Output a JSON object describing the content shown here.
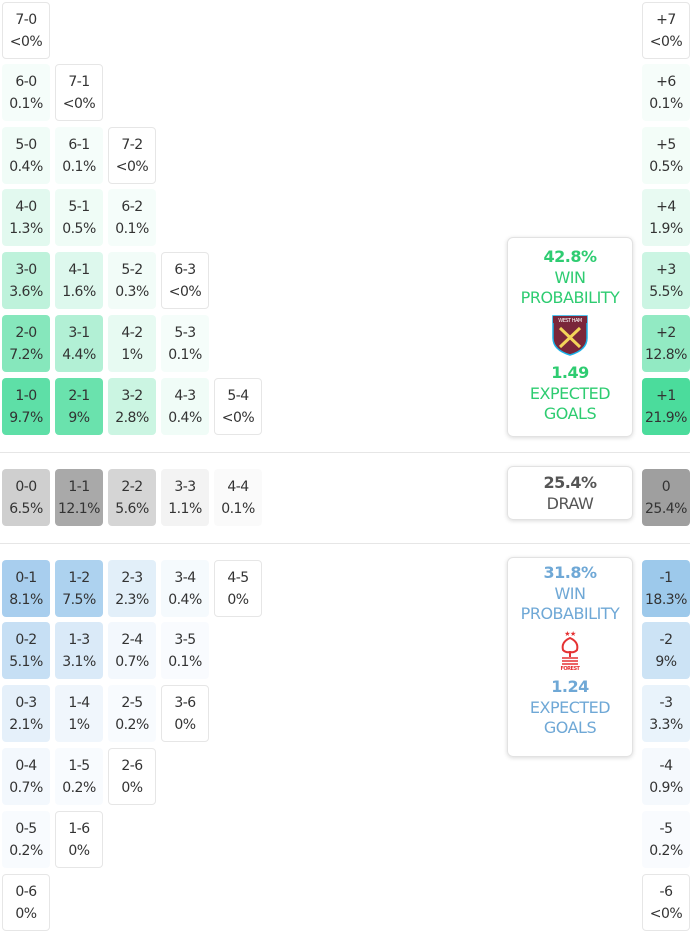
{
  "colors": {
    "home": "#2ecc87",
    "away": "#7fb6e0",
    "draw": "#9a9a9a",
    "home_text": "#2ecc71",
    "away_text": "#6fa8d6",
    "draw_text": "#555555"
  },
  "home_rows": [
    [
      [
        "7-0",
        "<0%",
        0
      ]
    ],
    [
      [
        "6-0",
        "0.1%",
        0.1
      ],
      [
        "7-1",
        "<0%",
        0
      ]
    ],
    [
      [
        "5-0",
        "0.4%",
        0.4
      ],
      [
        "6-1",
        "0.1%",
        0.1
      ],
      [
        "7-2",
        "<0%",
        0
      ]
    ],
    [
      [
        "4-0",
        "1.3%",
        1.3
      ],
      [
        "5-1",
        "0.5%",
        0.5
      ],
      [
        "6-2",
        "0.1%",
        0.1
      ]
    ],
    [
      [
        "3-0",
        "3.6%",
        3.6
      ],
      [
        "4-1",
        "1.6%",
        1.6
      ],
      [
        "5-2",
        "0.3%",
        0.3
      ],
      [
        "6-3",
        "<0%",
        0
      ]
    ],
    [
      [
        "2-0",
        "7.2%",
        7.2
      ],
      [
        "3-1",
        "4.4%",
        4.4
      ],
      [
        "4-2",
        "1%",
        1
      ],
      [
        "5-3",
        "0.1%",
        0.1
      ]
    ],
    [
      [
        "1-0",
        "9.7%",
        9.7
      ],
      [
        "2-1",
        "9%",
        9
      ],
      [
        "3-2",
        "2.8%",
        2.8
      ],
      [
        "4-3",
        "0.4%",
        0.4
      ],
      [
        "5-4",
        "<0%",
        0
      ]
    ]
  ],
  "draw_row": [
    [
      "0-0",
      "6.5%",
      6.5
    ],
    [
      "1-1",
      "12.1%",
      12.1
    ],
    [
      "2-2",
      "5.6%",
      5.6
    ],
    [
      "3-3",
      "1.1%",
      1.1
    ],
    [
      "4-4",
      "0.1%",
      0.1
    ]
  ],
  "away_rows": [
    [
      [
        "0-1",
        "8.1%",
        8.1
      ],
      [
        "1-2",
        "7.5%",
        7.5
      ],
      [
        "2-3",
        "2.3%",
        2.3
      ],
      [
        "3-4",
        "0.4%",
        0.4
      ],
      [
        "4-5",
        "0%",
        0
      ]
    ],
    [
      [
        "0-2",
        "5.1%",
        5.1
      ],
      [
        "1-3",
        "3.1%",
        3.1
      ],
      [
        "2-4",
        "0.7%",
        0.7
      ],
      [
        "3-5",
        "0.1%",
        0.1
      ]
    ],
    [
      [
        "0-3",
        "2.1%",
        2.1
      ],
      [
        "1-4",
        "1%",
        1
      ],
      [
        "2-5",
        "0.2%",
        0.2
      ],
      [
        "3-6",
        "0%",
        0
      ]
    ],
    [
      [
        "0-4",
        "0.7%",
        0.7
      ],
      [
        "1-5",
        "0.2%",
        0.2
      ],
      [
        "2-6",
        "0%",
        0
      ]
    ],
    [
      [
        "0-5",
        "0.2%",
        0.2
      ],
      [
        "1-6",
        "0%",
        0
      ]
    ],
    [
      [
        "0-6",
        "0%",
        0
      ]
    ]
  ],
  "margin_home": [
    [
      "+7",
      "<0%",
      0
    ],
    [
      "+6",
      "0.1%",
      0.1
    ],
    [
      "+5",
      "0.5%",
      0.5
    ],
    [
      "+4",
      "1.9%",
      1.9
    ],
    [
      "+3",
      "5.5%",
      5.5
    ],
    [
      "+2",
      "12.8%",
      12.8
    ],
    [
      "+1",
      "21.9%",
      21.9
    ]
  ],
  "margin_draw": [
    "0",
    "25.4%",
    25.4
  ],
  "margin_away": [
    [
      "-1",
      "18.3%",
      18.3
    ],
    [
      "-2",
      "9%",
      9
    ],
    [
      "-3",
      "3.3%",
      3.3
    ],
    [
      "-4",
      "0.9%",
      0.9
    ],
    [
      "-5",
      "0.2%",
      0.2
    ],
    [
      "-6",
      "<0%",
      0
    ]
  ],
  "home_card": {
    "win_pct": "42.8%",
    "win_label_1": "WIN",
    "win_label_2": "PROBABILITY",
    "team_logo": "West Ham United crest",
    "xg": "1.49",
    "xg_label_1": "EXPECTED",
    "xg_label_2": "GOALS"
  },
  "draw_card": {
    "pct": "25.4%",
    "label": "DRAW"
  },
  "away_card": {
    "win_pct": "31.8%",
    "win_label_1": "WIN",
    "win_label_2": "PROBABILITY",
    "team_logo": "Nottingham Forest crest",
    "xg": "1.24",
    "xg_label_1": "EXPECTED",
    "xg_label_2": "GOALS"
  }
}
